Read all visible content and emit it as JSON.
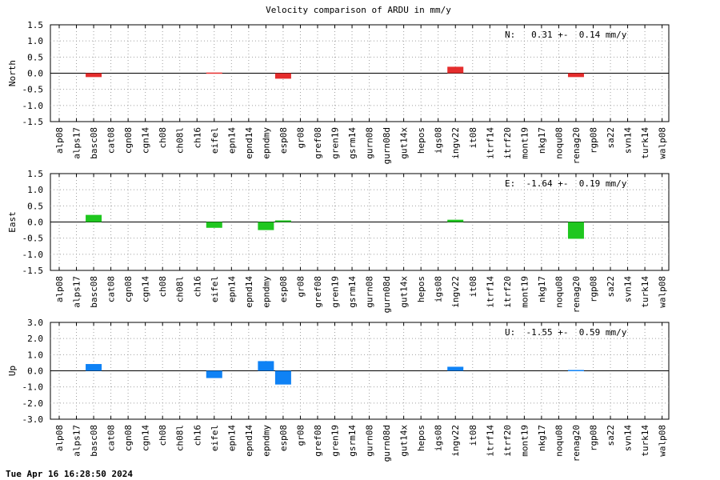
{
  "chart_data": {
    "type": "bar",
    "title": "Velocity comparison of ARDU in mm/y",
    "categories": [
      "alp08",
      "alps17",
      "basc08",
      "cat08",
      "cgn08",
      "cgn14",
      "ch08",
      "ch08l",
      "ch16",
      "eifel",
      "epn14",
      "epnd14",
      "epndmy",
      "esp08",
      "gr08",
      "gref08",
      "gren19",
      "gsrm14",
      "gurn08",
      "gurn08d",
      "gut14x",
      "hepos",
      "igs08",
      "ingv22",
      "it08",
      "itrf14",
      "itrf20",
      "mont19",
      "nkg17",
      "noqu08",
      "renag20",
      "rgp08",
      "sa22",
      "svn14",
      "turk14",
      "walp08"
    ],
    "panels": [
      {
        "ylabel": "North",
        "ylim": [
          -1.5,
          1.5
        ],
        "yticks": [
          "1.5",
          "1.0",
          "0.5",
          "0.0",
          "-0.5",
          "-1.0",
          "-1.5"
        ],
        "ytick_values": [
          1.5,
          1.0,
          0.5,
          0.0,
          -0.5,
          -1.0,
          -1.5
        ],
        "color": "#e52d2d",
        "annotation": "N:   0.31 +-  0.14 mm/y",
        "values": {
          "basc08": -0.12,
          "eifel": 0.02,
          "esp08": -0.17,
          "ingv22": 0.2,
          "renag20": -0.12
        }
      },
      {
        "ylabel": "East",
        "ylim": [
          -1.5,
          1.5
        ],
        "yticks": [
          "1.5",
          "1.0",
          "0.5",
          "0.0",
          "-0.5",
          "-1.0",
          "-1.5"
        ],
        "ytick_values": [
          1.5,
          1.0,
          0.5,
          0.0,
          -0.5,
          -1.0,
          -1.5
        ],
        "color": "#1fc71f",
        "annotation": "E:  -1.64 +-  0.19 mm/y",
        "values": {
          "basc08": 0.22,
          "eifel": -0.18,
          "epndmy": -0.25,
          "esp08": 0.05,
          "ingv22": 0.07,
          "renag20": -0.52
        }
      },
      {
        "ylabel": "Up",
        "ylim": [
          -3.0,
          3.0
        ],
        "yticks": [
          "3.0",
          "2.0",
          "1.0",
          "0.0",
          "-1.0",
          "-2.0",
          "-3.0"
        ],
        "ytick_values": [
          3.0,
          2.0,
          1.0,
          0.0,
          -1.0,
          -2.0,
          -3.0
        ],
        "color": "#0f82f5",
        "annotation": "U:  -1.55 +-  0.59 mm/y",
        "values": {
          "basc08": 0.42,
          "eifel": -0.45,
          "epndmy": 0.6,
          "esp08": -0.85,
          "ingv22": 0.25,
          "renag20": 0.05
        }
      }
    ],
    "grid": true
  },
  "footer": {
    "timestamp": "Tue Apr 16 16:28:50 2024"
  }
}
